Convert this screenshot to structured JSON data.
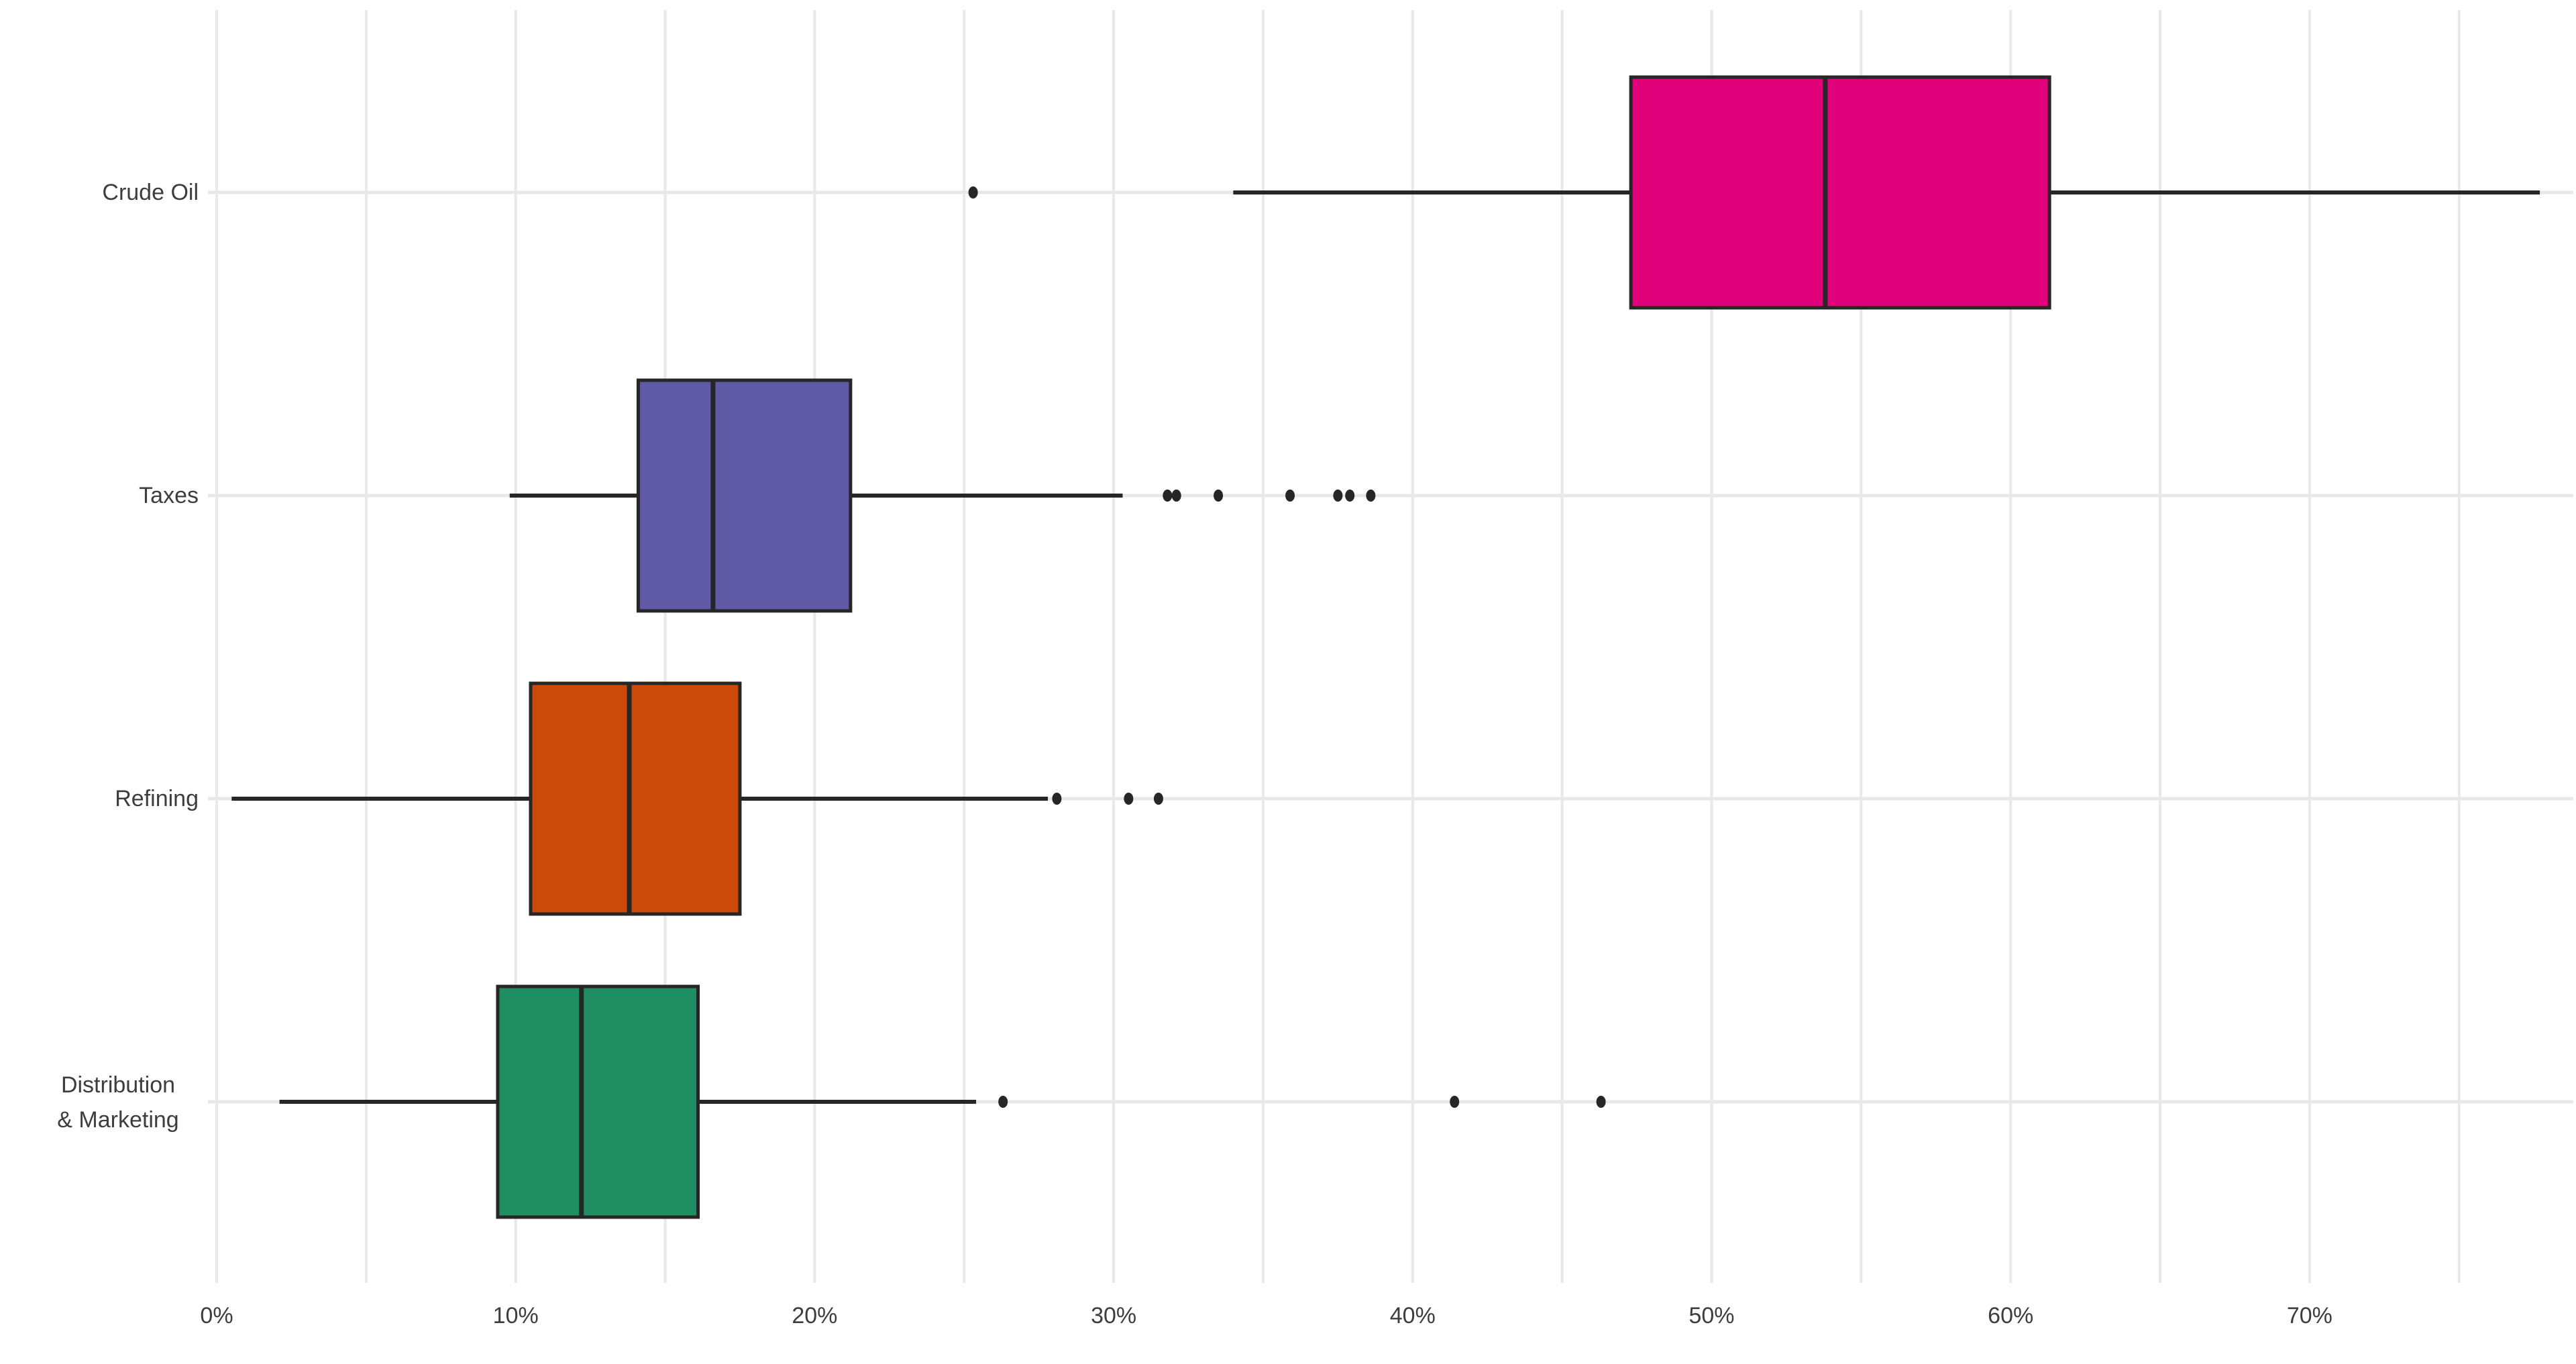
{
  "figure": {
    "title": "",
    "background_color": "#ffffff",
    "text_color": "#3d3d3d",
    "gridline_color": "#e8e8e8",
    "box_stroke_color": "#262626"
  },
  "chart_data": {
    "type": "boxplot",
    "orientation": "horizontal",
    "title": "",
    "xlabel": "",
    "ylabel": "",
    "grid": true,
    "legend": "none",
    "x_axis": {
      "unit": "%",
      "ticks": [
        0,
        10,
        20,
        30,
        40,
        50,
        60,
        70
      ],
      "tick_labels": [
        "0%",
        "10%",
        "20%",
        "30%",
        "40%",
        "50%",
        "60%",
        "70%"
      ],
      "range": [
        -0.3,
        78.9
      ],
      "gridline_step_pct": 5
    },
    "categories": [
      "Crude Oil",
      "Taxes",
      "Refining",
      "Distribution & Marketing"
    ],
    "series": [
      {
        "name": "Crude Oil",
        "label_lines": [
          "Crude Oil"
        ],
        "color": "#E0017B",
        "whisker_low": 34.0,
        "q1": 47.3,
        "median": 53.8,
        "q3": 61.3,
        "whisker_high": 77.7,
        "outliers": [
          25.3
        ]
      },
      {
        "name": "Taxes",
        "label_lines": [
          "Taxes"
        ],
        "color": "#5F59A6",
        "whisker_low": 9.8,
        "q1": 14.1,
        "median": 16.6,
        "q3": 21.2,
        "whisker_high": 30.3,
        "outliers": [
          31.8,
          32.1,
          33.5,
          35.9,
          37.5,
          37.9,
          38.6
        ]
      },
      {
        "name": "Refining",
        "label_lines": [
          "Refining"
        ],
        "color": "#CC4A09",
        "whisker_low": 0.5,
        "q1": 10.5,
        "median": 13.8,
        "q3": 17.5,
        "whisker_high": 27.8,
        "outliers": [
          28.1,
          30.5,
          31.5
        ]
      },
      {
        "name": "Distribution & Marketing",
        "label_lines": [
          "Distribution",
          "& Marketing"
        ],
        "color": "#1F8F63",
        "whisker_low": 2.1,
        "q1": 9.4,
        "median": 12.2,
        "q3": 16.1,
        "whisker_high": 25.4,
        "outliers": [
          26.3,
          41.4,
          46.3
        ]
      }
    ]
  }
}
